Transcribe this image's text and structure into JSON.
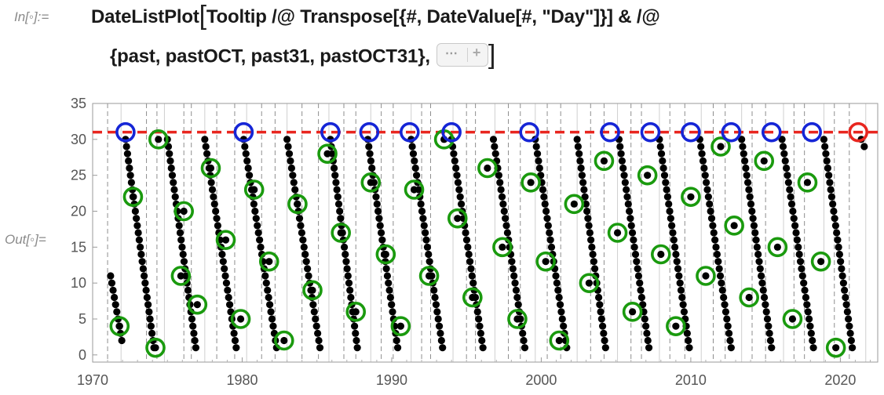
{
  "notebook": {
    "in_label": "In[◦]:=",
    "out_label": "Out[◦]=",
    "code_line1_main": "DateListPlot",
    "code_line1_rest": "Tooltip /@ Transpose[{#, DateValue[#, \"Day\"]}] & /@",
    "code_line2": "{past, pastOCT, past31, pastOCT31},",
    "fold_button_dots": "⋯",
    "fold_button_plus": "+"
  },
  "chart_data": {
    "type": "scatter",
    "x_ticks": [
      "1970",
      "1980",
      "1990",
      "2000",
      "2010",
      "2020"
    ],
    "y_ticks": [
      "0",
      "5",
      "10",
      "15",
      "20",
      "25",
      "30",
      "35"
    ],
    "xlim": [
      1970.0,
      2022.5
    ],
    "ylim": [
      -1,
      35
    ],
    "reference_line": {
      "y": 31,
      "color": "#e8261f",
      "style": "dashed"
    },
    "gridlines": {
      "solid_years": [
        1971.9,
        1974.8,
        1977.5,
        1980.3,
        1983.0,
        1985.8,
        1988.6,
        1991.3,
        1994.1,
        1996.9,
        1999.6,
        2002.4,
        2005.1,
        2007.9,
        2010.7,
        2013.4,
        2016.2,
        2018.9,
        2021.7
      ],
      "dashed_years": [
        1971.0,
        1973.6,
        1974.3,
        1976.1,
        1976.6,
        1978.3,
        1979.5,
        1981.3,
        1982.2,
        1984.0,
        1985.1,
        1986.8,
        1987.6,
        1989.3,
        1990.1,
        1992.0,
        1992.6,
        1995.0,
        1995.6,
        1997.8,
        1998.6,
        2000.4,
        2001.3,
        2003.3,
        2004.2,
        2006.0,
        2006.7,
        2008.6,
        2009.6,
        2011.5,
        2012.3,
        2014.1,
        2015.0,
        2016.9,
        2017.6,
        2019.6,
        2020.6
      ]
    },
    "series": [
      {
        "color": "#000000",
        "marker": "dot",
        "segments": [
          {
            "x": [
              1971.2,
              1971.95
            ],
            "y": [
              11,
              2
            ]
          },
          {
            "x": [
              1972.2,
              1974.1
            ],
            "y": [
              30,
              1
            ]
          },
          {
            "x": [
              1975.0,
              1976.9
            ],
            "y": [
              30,
              1
            ]
          },
          {
            "x": [
              1977.5,
              1979.6
            ],
            "y": [
              30,
              1
            ]
          },
          {
            "x": [
              1980.1,
              1982.3
            ],
            "y": [
              30,
              1
            ]
          },
          {
            "x": [
              1983.0,
              1985.2
            ],
            "y": [
              30,
              1
            ]
          },
          {
            "x": [
              1985.9,
              1987.7
            ],
            "y": [
              30,
              1
            ]
          },
          {
            "x": [
              1988.4,
              1990.4
            ],
            "y": [
              30,
              1
            ]
          },
          {
            "x": [
              1991.3,
              1993.4
            ],
            "y": [
              30,
              1
            ]
          },
          {
            "x": [
              1994.0,
              1996.1
            ],
            "y": [
              30,
              1
            ]
          },
          {
            "x": [
              1996.8,
              1998.9
            ],
            "y": [
              30,
              1
            ]
          },
          {
            "x": [
              1999.6,
              2001.7
            ],
            "y": [
              30,
              1
            ]
          },
          {
            "x": [
              2002.4,
              2004.3
            ],
            "y": [
              30,
              1
            ]
          },
          {
            "x": [
              2005.2,
              2007.2
            ],
            "y": [
              30,
              1
            ]
          },
          {
            "x": [
              2007.9,
              2009.9
            ],
            "y": [
              30,
              1
            ]
          },
          {
            "x": [
              2010.6,
              2012.7
            ],
            "y": [
              30,
              1
            ]
          },
          {
            "x": [
              2013.4,
              2015.4
            ],
            "y": [
              30,
              1
            ]
          },
          {
            "x": [
              2016.1,
              2018.2
            ],
            "y": [
              30,
              1
            ]
          },
          {
            "x": [
              2018.9,
              2020.8
            ],
            "y": [
              30,
              1
            ]
          },
          {
            "x": [
              2021.4,
              2021.6
            ],
            "y": [
              30,
              29
            ]
          }
        ]
      },
      {
        "color": "#1a9a0e",
        "marker": "open-circle",
        "points": [
          {
            "x": 1971.8,
            "y": 4
          },
          {
            "x": 1972.7,
            "y": 22
          },
          {
            "x": 1974.4,
            "y": 30
          },
          {
            "x": 1974.2,
            "y": 1
          },
          {
            "x": 1975.9,
            "y": 11
          },
          {
            "x": 1976.1,
            "y": 20
          },
          {
            "x": 1977.0,
            "y": 7
          },
          {
            "x": 1977.9,
            "y": 26
          },
          {
            "x": 1978.9,
            "y": 16
          },
          {
            "x": 1979.9,
            "y": 5
          },
          {
            "x": 1980.8,
            "y": 23
          },
          {
            "x": 1981.8,
            "y": 13
          },
          {
            "x": 1982.8,
            "y": 2
          },
          {
            "x": 1983.7,
            "y": 21
          },
          {
            "x": 1984.7,
            "y": 9
          },
          {
            "x": 1985.7,
            "y": 28
          },
          {
            "x": 1986.6,
            "y": 17
          },
          {
            "x": 1987.6,
            "y": 6
          },
          {
            "x": 1988.6,
            "y": 24
          },
          {
            "x": 1989.6,
            "y": 14
          },
          {
            "x": 1990.6,
            "y": 4
          },
          {
            "x": 1991.5,
            "y": 23
          },
          {
            "x": 1992.5,
            "y": 11
          },
          {
            "x": 1993.5,
            "y": 30
          },
          {
            "x": 1994.4,
            "y": 19
          },
          {
            "x": 1995.4,
            "y": 8
          },
          {
            "x": 1996.4,
            "y": 26
          },
          {
            "x": 1997.4,
            "y": 15
          },
          {
            "x": 1998.4,
            "y": 5
          },
          {
            "x": 1999.3,
            "y": 24
          },
          {
            "x": 2000.3,
            "y": 13
          },
          {
            "x": 2001.2,
            "y": 2
          },
          {
            "x": 2002.2,
            "y": 21
          },
          {
            "x": 2003.2,
            "y": 10
          },
          {
            "x": 2004.2,
            "y": 27
          },
          {
            "x": 2005.1,
            "y": 17
          },
          {
            "x": 2006.1,
            "y": 6
          },
          {
            "x": 2007.1,
            "y": 25
          },
          {
            "x": 2008.0,
            "y": 14
          },
          {
            "x": 2009.0,
            "y": 4
          },
          {
            "x": 2010.0,
            "y": 22
          },
          {
            "x": 2011.0,
            "y": 11
          },
          {
            "x": 2012.0,
            "y": 29
          },
          {
            "x": 2012.9,
            "y": 18
          },
          {
            "x": 2013.9,
            "y": 8
          },
          {
            "x": 2014.9,
            "y": 27
          },
          {
            "x": 2015.8,
            "y": 15
          },
          {
            "x": 2016.8,
            "y": 5
          },
          {
            "x": 2017.8,
            "y": 24
          },
          {
            "x": 2018.7,
            "y": 13
          },
          {
            "x": 2019.7,
            "y": 1
          }
        ]
      },
      {
        "color": "#1525d6",
        "marker": "open-circle",
        "points": [
          {
            "x": 1972.2,
            "y": 31
          },
          {
            "x": 1980.1,
            "y": 31
          },
          {
            "x": 1985.9,
            "y": 31
          },
          {
            "x": 1988.5,
            "y": 31
          },
          {
            "x": 1991.2,
            "y": 31
          },
          {
            "x": 1994.0,
            "y": 31
          },
          {
            "x": 1999.2,
            "y": 31
          },
          {
            "x": 2004.6,
            "y": 31
          },
          {
            "x": 2007.3,
            "y": 31
          },
          {
            "x": 2010.0,
            "y": 31
          },
          {
            "x": 2012.7,
            "y": 31
          },
          {
            "x": 2015.4,
            "y": 31
          },
          {
            "x": 2018.1,
            "y": 31
          }
        ]
      },
      {
        "color": "#e8261f",
        "marker": "open-circle",
        "points": [
          {
            "x": 2021.2,
            "y": 31
          }
        ]
      }
    ]
  }
}
